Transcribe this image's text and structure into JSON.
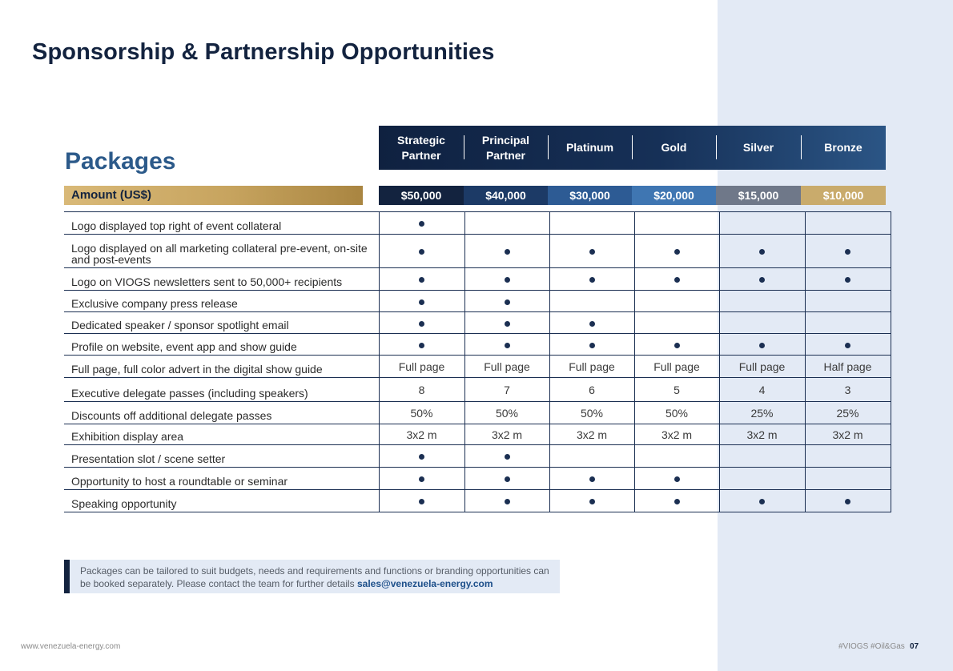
{
  "title": "Sponsorship & Partnership Opportunities",
  "section_title": "Packages",
  "amount_label": "Amount (US$)",
  "columns": [
    {
      "name_lines": [
        "Strategic",
        "Partner"
      ],
      "price": "$50,000",
      "color": "#13233f"
    },
    {
      "name_lines": [
        "Principal",
        "Partner"
      ],
      "price": "$40,000",
      "color": "#1c3a66"
    },
    {
      "name_lines": [
        "Platinum"
      ],
      "price": "$30,000",
      "color": "#2d5b94"
    },
    {
      "name_lines": [
        "Gold"
      ],
      "price": "$20,000",
      "color": "#3f76b2"
    },
    {
      "name_lines": [
        "Silver"
      ],
      "price": "$15,000",
      "color": "#6f7889"
    },
    {
      "name_lines": [
        "Bronze"
      ],
      "price": "$10,000",
      "color": "#c9ab6c"
    }
  ],
  "rows": [
    {
      "label": "Logo displayed top right of event collateral",
      "values": [
        "•",
        "",
        "",
        "",
        "",
        ""
      ]
    },
    {
      "label": "Logo displayed on all marketing collateral pre-event, on-site and post-events",
      "values": [
        "•",
        "•",
        "•",
        "•",
        "•",
        "•"
      ]
    },
    {
      "label": "Logo on VIOGS newsletters sent to 50,000+ recipients",
      "values": [
        "•",
        "•",
        "•",
        "•",
        "•",
        "•"
      ]
    },
    {
      "label": "Exclusive company press release",
      "values": [
        "•",
        "•",
        "",
        "",
        "",
        ""
      ]
    },
    {
      "label": "Dedicated speaker / sponsor spotlight email",
      "values": [
        "•",
        "•",
        "•",
        "",
        "",
        ""
      ]
    },
    {
      "label": "Profile on website, event app and show guide",
      "values": [
        "•",
        "•",
        "•",
        "•",
        "•",
        "•"
      ]
    },
    {
      "label": "Full page, full color advert in the digital show guide",
      "values": [
        "Full page",
        "Full page",
        "Full page",
        "Full page",
        "Full page",
        "Half page"
      ]
    },
    {
      "label": "Executive delegate passes (including speakers)",
      "values": [
        "8",
        "7",
        "6",
        "5",
        "4",
        "3"
      ]
    },
    {
      "label": "Discounts off additional delegate passes",
      "values": [
        "50%",
        "50%",
        "50%",
        "50%",
        "25%",
        "25%"
      ]
    },
    {
      "label": "Exhibition display area",
      "values": [
        "3x2 m",
        "3x2 m",
        "3x2 m",
        "3x2 m",
        "3x2 m",
        "3x2 m"
      ]
    },
    {
      "label": "Presentation slot / scene setter",
      "values": [
        "•",
        "•",
        "",
        "",
        "",
        ""
      ]
    },
    {
      "label": "Opportunity to host a roundtable or seminar",
      "values": [
        "•",
        "•",
        "•",
        "•",
        "",
        ""
      ]
    },
    {
      "label": "Speaking opportunity",
      "values": [
        "•",
        "•",
        "•",
        "•",
        "•",
        "•"
      ]
    }
  ],
  "note": {
    "text": "Packages can be tailored to suit budgets, needs and requirements and functions or branding opportunities can be booked separately. Please contact the team for further details",
    "email": "sales@venezuela-energy.com"
  },
  "footer": {
    "website": "www.venezuela-energy.com",
    "tags": "#VIOGS #Oil&Gas",
    "page": "07"
  }
}
